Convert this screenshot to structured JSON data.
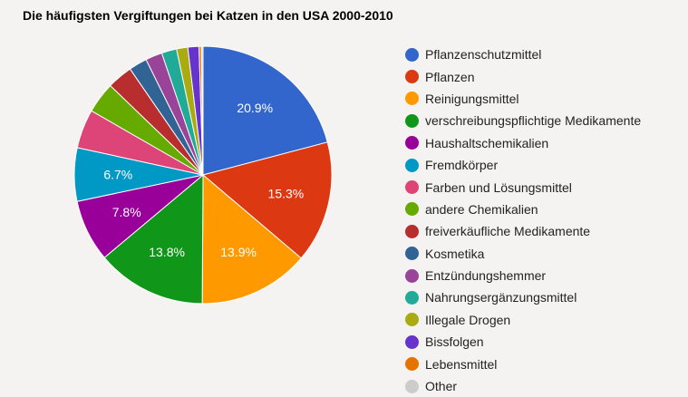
{
  "title": "Die häufigsten Vergiftungen bei Katzen in den USA 2000-2010",
  "chart_data": {
    "type": "pie",
    "title": "Die häufigsten Vergiftungen bei Katzen in den USA 2000-2010",
    "legend_position": "right",
    "categories": [
      "Pflanzenschutzmittel",
      "Pflanzen",
      "Reinigungsmittel",
      "verschreibungspflichtige Medikamente",
      "Haushaltschemikalien",
      "Fremdkörper",
      "Farben und Lösungsmittel",
      "andere Chemikalien",
      "freiverkäufliche Medikamente",
      "Kosmetika",
      "Entzündungshemmer",
      "Nahrungsergänzungsmittel",
      "Illegale Drogen",
      "Bissfolgen",
      "Lebensmittel",
      "Other"
    ],
    "values": [
      20.9,
      15.3,
      13.9,
      13.8,
      7.8,
      6.7,
      4.9,
      3.9,
      3.2,
      2.3,
      2.1,
      1.9,
      1.4,
      1.4,
      0.3,
      0.2
    ],
    "labels_shown": [
      "20.9%",
      "15.3%",
      "13.9%",
      "13.8%",
      "7.8%",
      "6.7%",
      "",
      "",
      "",
      "",
      "",
      "",
      "",
      "",
      "",
      ""
    ],
    "colors": [
      "#3366cc",
      "#dc3912",
      "#ff9900",
      "#109618",
      "#990099",
      "#0099c6",
      "#dd4477",
      "#66aa00",
      "#b82e2e",
      "#316395",
      "#994499",
      "#22aa99",
      "#aaaa11",
      "#6633cc",
      "#e67300",
      "#cccccc"
    ]
  }
}
